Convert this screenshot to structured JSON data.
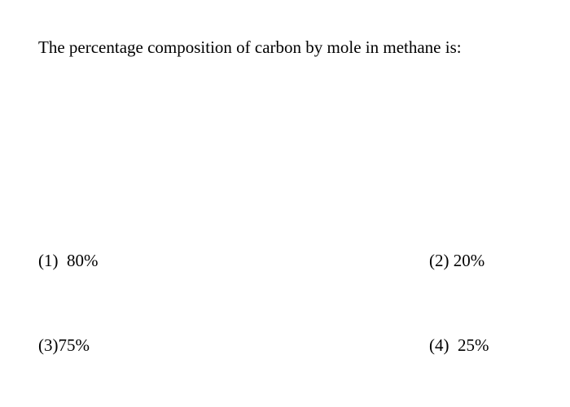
{
  "question": {
    "text": "The percentage composition of carbon by mole in methane is:"
  },
  "options": [
    "(1)  80%",
    "(2) 20%",
    "(3)75%",
    "(4)  25%"
  ]
}
